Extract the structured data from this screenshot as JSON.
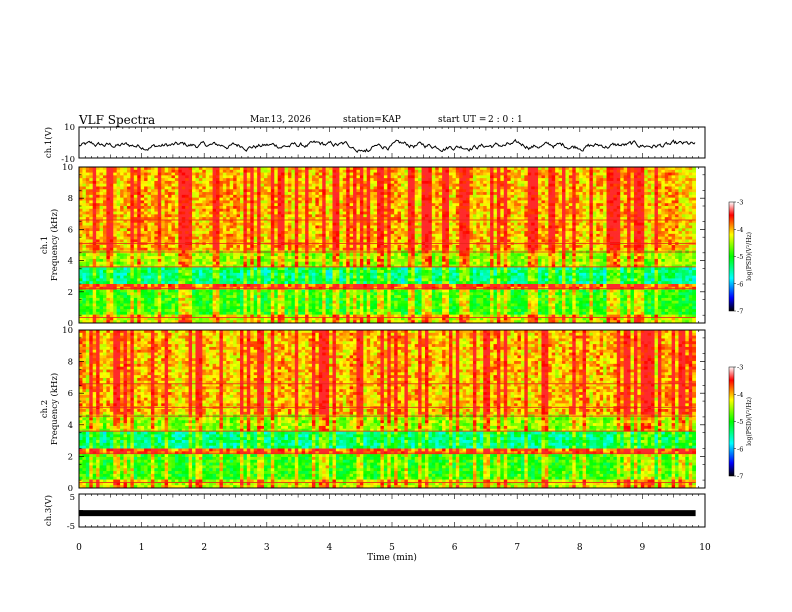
{
  "header": {
    "title": "VLF Spectra",
    "date": "Mar.13, 2026",
    "station": "station=KAP",
    "start_ut_label": "start UT =",
    "start_ut_value": "2 : 0 : 1"
  },
  "chart_data": [
    {
      "type": "line",
      "name": "ch1-waveform",
      "ylabel": "ch.1(V)",
      "ylim": [
        -10,
        10
      ],
      "yticklabels": [
        "10",
        "-10"
      ],
      "xlim": [
        0,
        10
      ],
      "description_values": "noisy voltage trace fluctuating roughly between -8 and 4 V"
    },
    {
      "type": "heatmap",
      "name": "ch1-spectrogram",
      "ylabel": "ch.1\nFrequency (kHz)",
      "ylim": [
        0,
        10
      ],
      "yticks": [
        "0",
        "2",
        "4",
        "6",
        "8",
        "10"
      ],
      "xlim": [
        0,
        9.85
      ],
      "colorbar": {
        "label": "log(PSD)(V²/Hz)",
        "range": [
          -7,
          -3
        ],
        "ticks": [
          "-3",
          "-4",
          "-5",
          "-6",
          "-7"
        ]
      }
    },
    {
      "type": "heatmap",
      "name": "ch2-spectrogram",
      "ylabel": "ch.2\nFrequency (kHz)",
      "ylim": [
        0,
        10
      ],
      "yticks": [
        "0",
        "2",
        "4",
        "6",
        "8",
        "10"
      ],
      "xlim": [
        0,
        9.85
      ],
      "colorbar": {
        "label": "log(PSD)(V²/Hz)",
        "range": [
          -7,
          -3
        ],
        "ticks": [
          "-3",
          "-4",
          "-5",
          "-6",
          "-7"
        ]
      }
    },
    {
      "type": "line",
      "name": "ch3-signal",
      "ylabel": "ch.3(V)",
      "ylim": [
        -5,
        5
      ],
      "yticklabels": [
        "5",
        "-5"
      ],
      "xlim": [
        0,
        10
      ],
      "level": -0.8
    }
  ],
  "xaxis": {
    "label": "Time (min)",
    "ticks": [
      "0",
      "1",
      "2",
      "3",
      "4",
      "5",
      "6",
      "7",
      "8",
      "9",
      "10"
    ]
  },
  "colors": {
    "frame": "#000000",
    "background": "#ffffff"
  }
}
